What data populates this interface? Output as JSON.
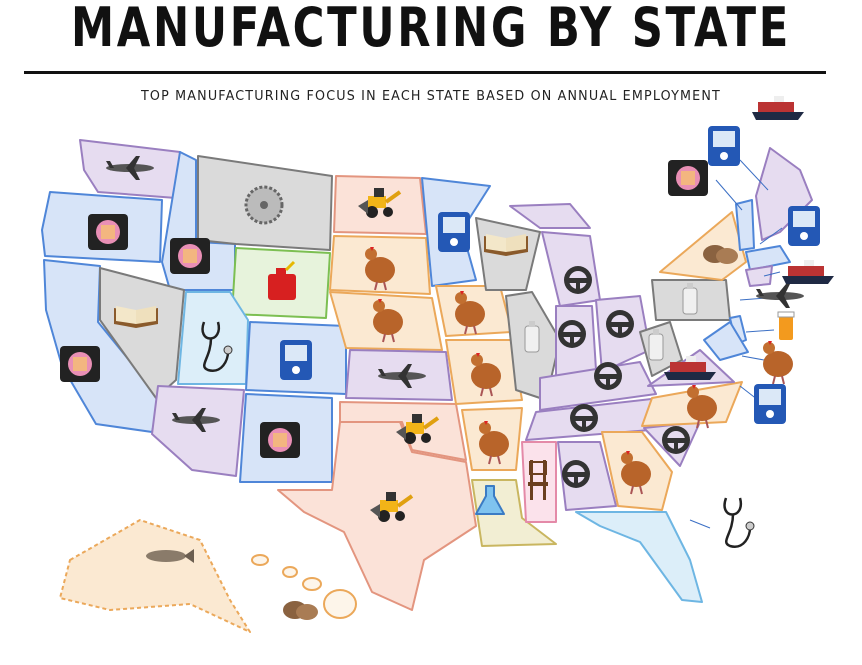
{
  "header": {
    "title": "MANUFACTURING BY STATE",
    "subtitle": "TOP MANUFACTURING FOCUS IN EACH STATE BASED ON ANNUAL EMPLOYMENT"
  }
}
